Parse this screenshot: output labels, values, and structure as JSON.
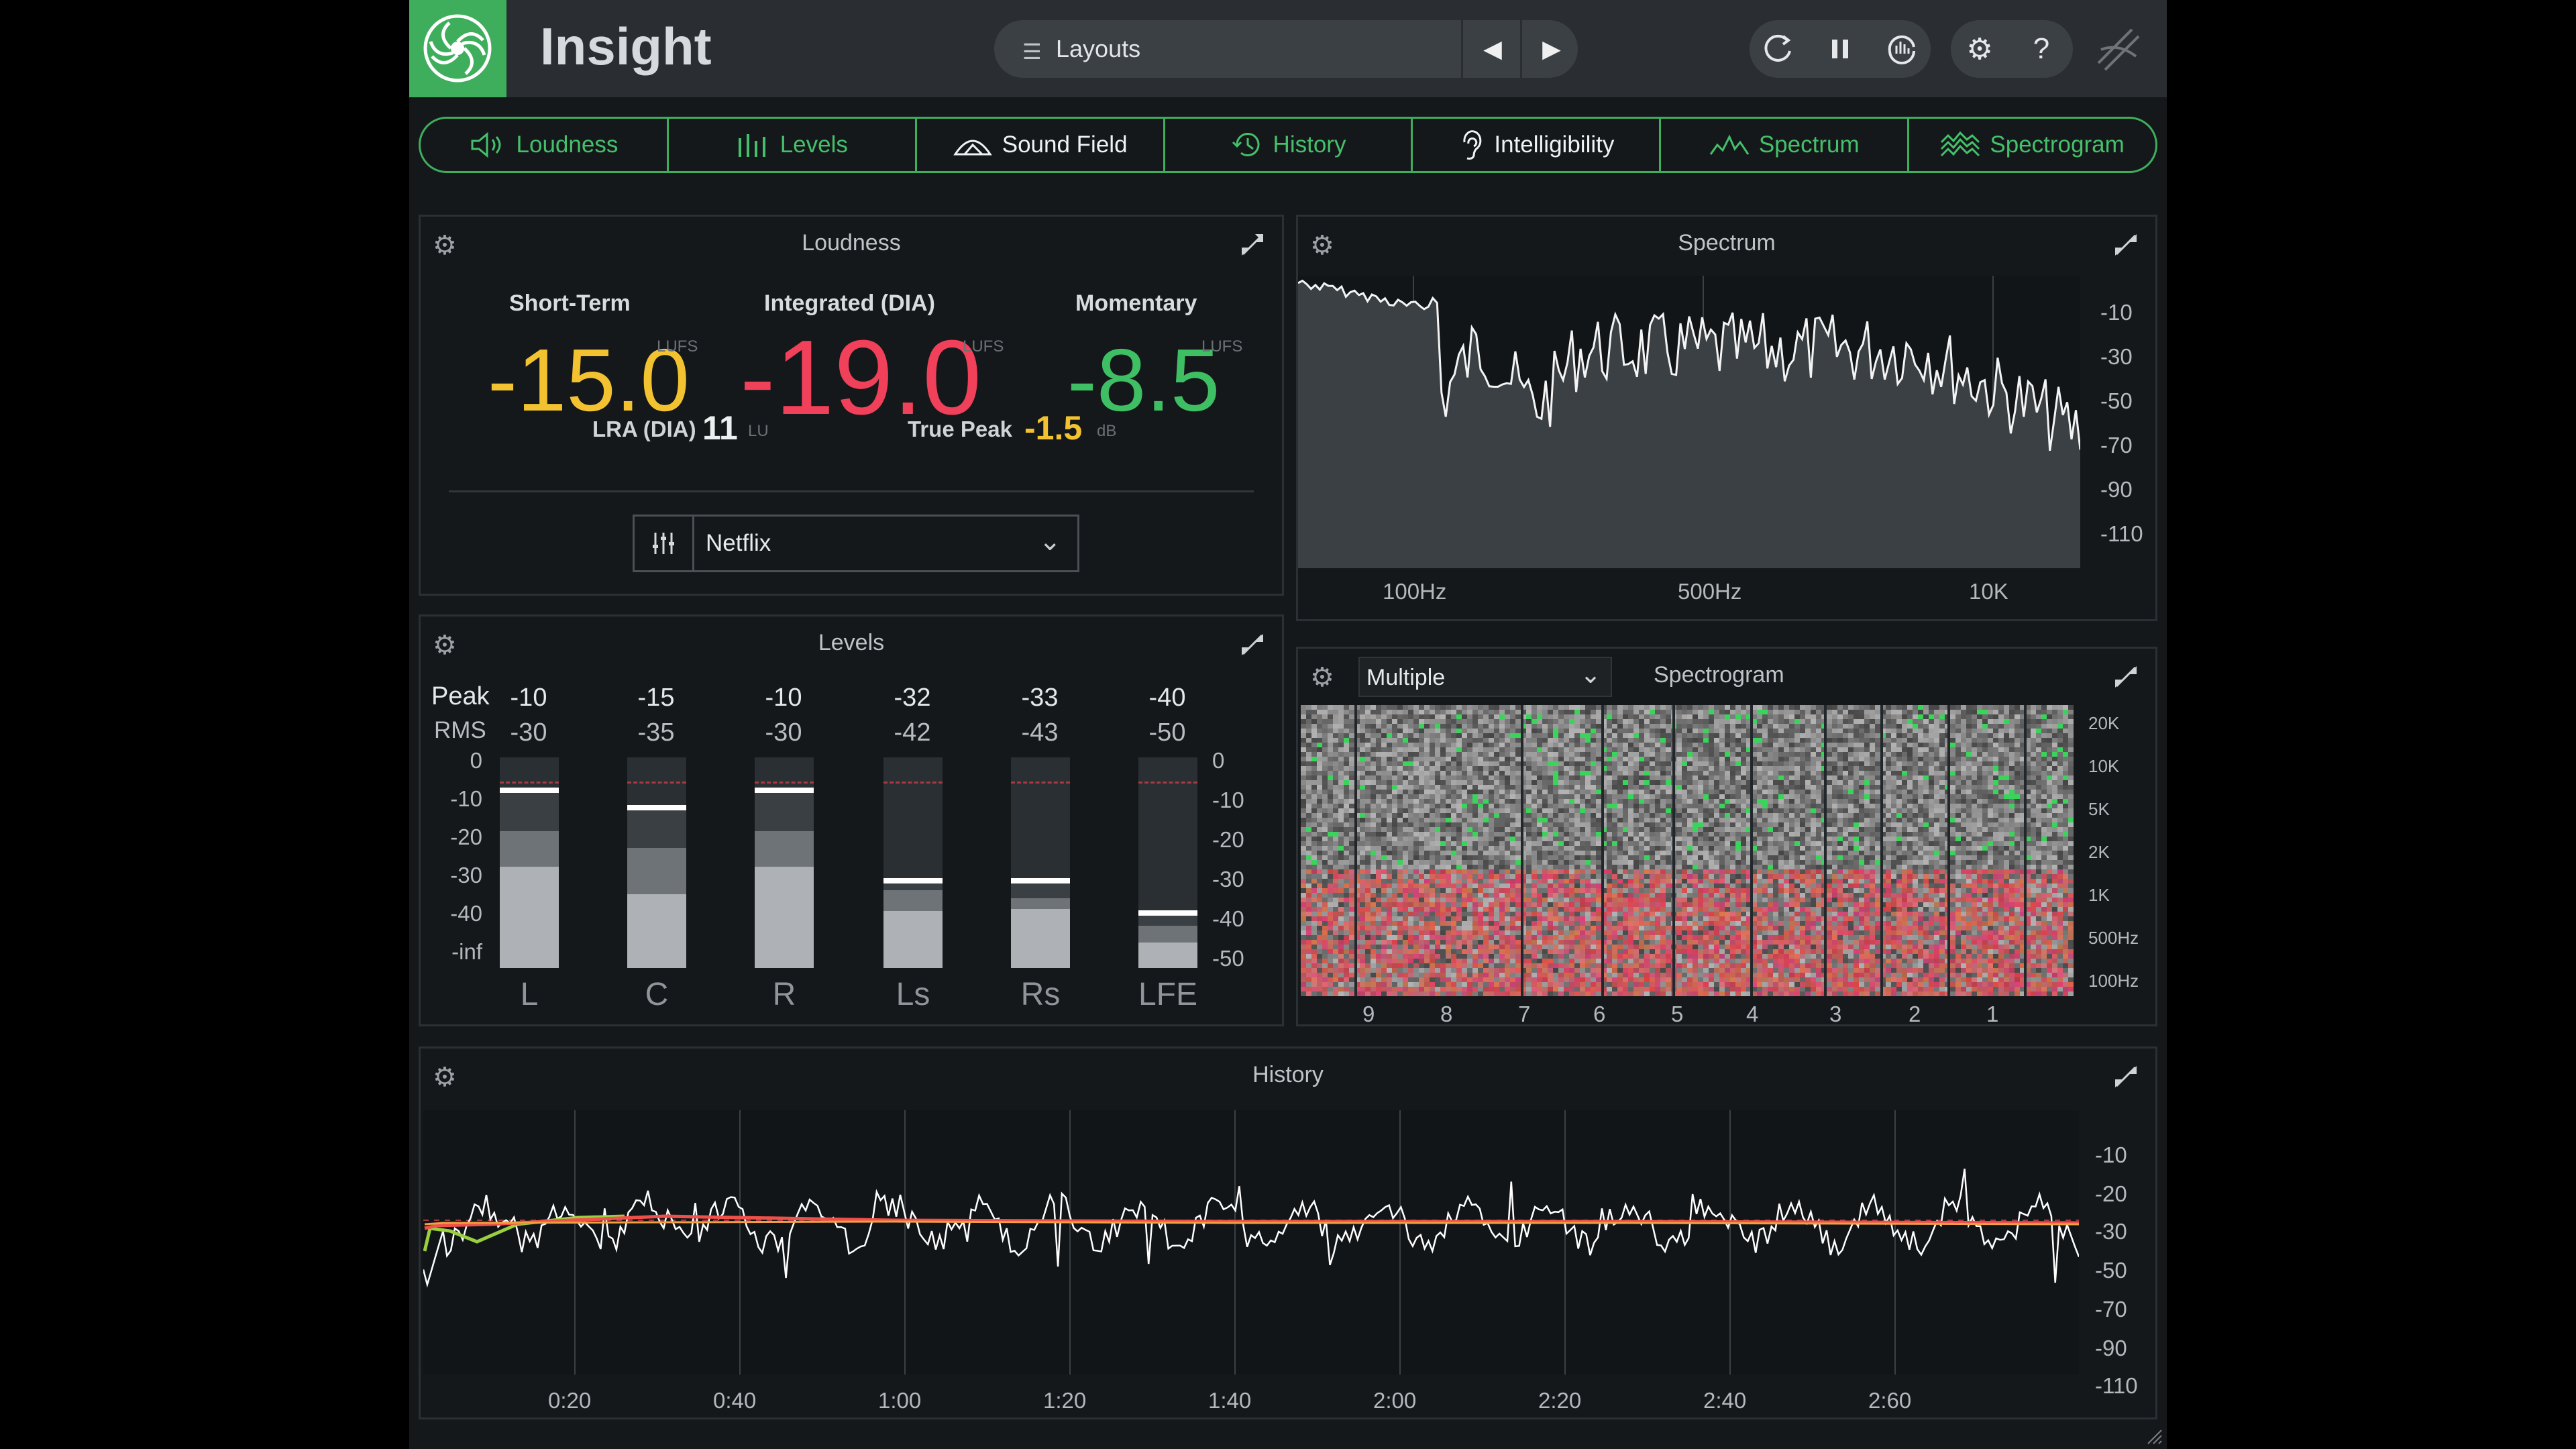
{
  "header": {
    "title": "Insight",
    "layouts_label": "Layouts"
  },
  "tabs": [
    {
      "label": "Loudness",
      "icon": "speaker-icon",
      "color": "#45c06a"
    },
    {
      "label": "Levels",
      "icon": "levels-icon",
      "color": "#45c06a"
    },
    {
      "label": "Sound Field",
      "icon": "sound-field-icon",
      "color": "#f0f2f3"
    },
    {
      "label": "History",
      "icon": "history-icon",
      "color": "#45c06a"
    },
    {
      "label": "Intelligibility",
      "icon": "ear-icon",
      "color": "#f0f2f3"
    },
    {
      "label": "Spectrum",
      "icon": "spectrum-icon",
      "color": "#45c06a"
    },
    {
      "label": "Spectrogram",
      "icon": "spectrogram-icon",
      "color": "#45c06a"
    }
  ],
  "loudness": {
    "title": "Loudness",
    "short_term_label": "Short-Term",
    "short_term_value": "-15.0",
    "integrated_label": "Integrated (DIA)",
    "integrated_value": "-19.0",
    "momentary_label": "Momentary",
    "momentary_value": "-8.5",
    "unit": "LUFS",
    "lra_label": "LRA (DIA)",
    "lra_value": "11",
    "lra_unit": "LU",
    "true_peak_label": "True Peak",
    "true_peak_value": "-1.5",
    "true_peak_unit": "dB",
    "preset": "Netflix",
    "colors": {
      "short_term": "#f2c230",
      "integrated": "#f0405a",
      "momentary": "#3fbf63"
    }
  },
  "levels": {
    "title": "Levels",
    "peak_label": "Peak",
    "rms_label": "RMS",
    "left_scale": [
      "0",
      "-10",
      "-20",
      "-30",
      "-40",
      "-inf"
    ],
    "right_scale": [
      "0",
      "-10",
      "-20",
      "-30",
      "-40",
      "-50"
    ],
    "channels": [
      {
        "name": "L",
        "peak": "-10",
        "rms": "-30",
        "peak_level": 0.83,
        "mid_level": 0.65,
        "rms_level": 0.48
      },
      {
        "name": "C",
        "peak": "-15",
        "rms": "-35",
        "peak_level": 0.75,
        "mid_level": 0.57,
        "rms_level": 0.35
      },
      {
        "name": "R",
        "peak": "-10",
        "rms": "-30",
        "peak_level": 0.83,
        "mid_level": 0.65,
        "rms_level": 0.48
      },
      {
        "name": "Ls",
        "peak": "-32",
        "rms": "-42",
        "peak_level": 0.4,
        "mid_level": 0.37,
        "rms_level": 0.27
      },
      {
        "name": "Rs",
        "peak": "-33",
        "rms": "-43",
        "peak_level": 0.4,
        "mid_level": 0.33,
        "rms_level": 0.28
      },
      {
        "name": "LFE",
        "peak": "-40",
        "rms": "-50",
        "peak_level": 0.25,
        "mid_level": 0.2,
        "rms_level": 0.12
      }
    ]
  },
  "spectrum": {
    "title": "Spectrum",
    "x_ticks": [
      "100Hz",
      "500Hz",
      "10K"
    ],
    "y_ticks": [
      "-10",
      "-30",
      "-50",
      "-70",
      "-90",
      "-110"
    ]
  },
  "spectrogram": {
    "title": "Spectrogram",
    "mode": "Multiple",
    "freq_ticks": [
      "20K",
      "10K",
      "5K",
      "2K",
      "1K",
      "500Hz",
      "100Hz"
    ],
    "time_ticks": [
      "9",
      "8",
      "7",
      "6",
      "5",
      "4",
      "3",
      "2",
      "1"
    ]
  },
  "history": {
    "title": "History",
    "x_ticks": [
      "0:20",
      "0:40",
      "1:00",
      "1:20",
      "1:40",
      "2:00",
      "2:20",
      "2:40",
      "2:60"
    ],
    "y_ticks": [
      "-10",
      "-20",
      "-30",
      "-50",
      "-70",
      "-90",
      "-110"
    ]
  }
}
